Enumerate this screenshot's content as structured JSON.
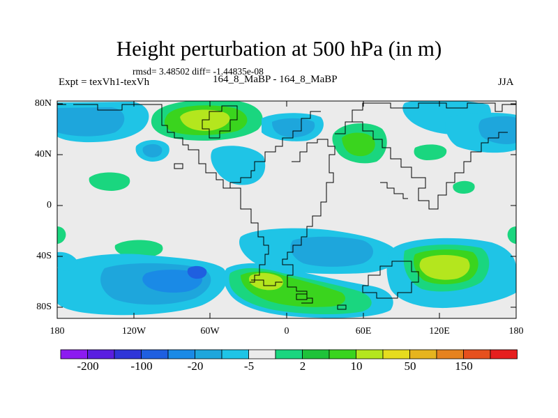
{
  "title": "Height perturbation at 500 hPa (in m)",
  "stats": "rmsd= 3.48502 diff= -1.44835e-08",
  "experiment": "Expt = texVh1-texVh",
  "center_string": "164_8_MaBP - 164_8_MaBP",
  "season": "JJA",
  "lat_labels": [
    "80N",
    "40N",
    "0",
    "40S",
    "80S"
  ],
  "lon_labels": [
    "180",
    "120W",
    "60W",
    "0",
    "60E",
    "120E",
    "180"
  ],
  "colorbar": {
    "labels": [
      "-200",
      "-100",
      "-20",
      "-5",
      "2",
      "10",
      "50",
      "150"
    ],
    "colors": [
      "#8c1bf0",
      "#5a1ee0",
      "#2f35d8",
      "#1f5fe0",
      "#1a8ae6",
      "#1ea6dc",
      "#1fc4e6",
      "#ebebeb",
      "#1ad67f",
      "#1ec23a",
      "#3ad41e",
      "#b4e61e",
      "#e6dc1e",
      "#e6b41e",
      "#e6821e",
      "#e6501e",
      "#e61e1e"
    ]
  },
  "palette": {
    "light_cyan": "#1fc4e6",
    "cyan": "#1ea6dc",
    "blue": "#1a8ae6",
    "deep_blue": "#1f5fe0",
    "neutral": "#ebebeb",
    "aqua_green": "#1ad67f",
    "green": "#3ad41e",
    "yellow_green": "#b4e61e"
  }
}
